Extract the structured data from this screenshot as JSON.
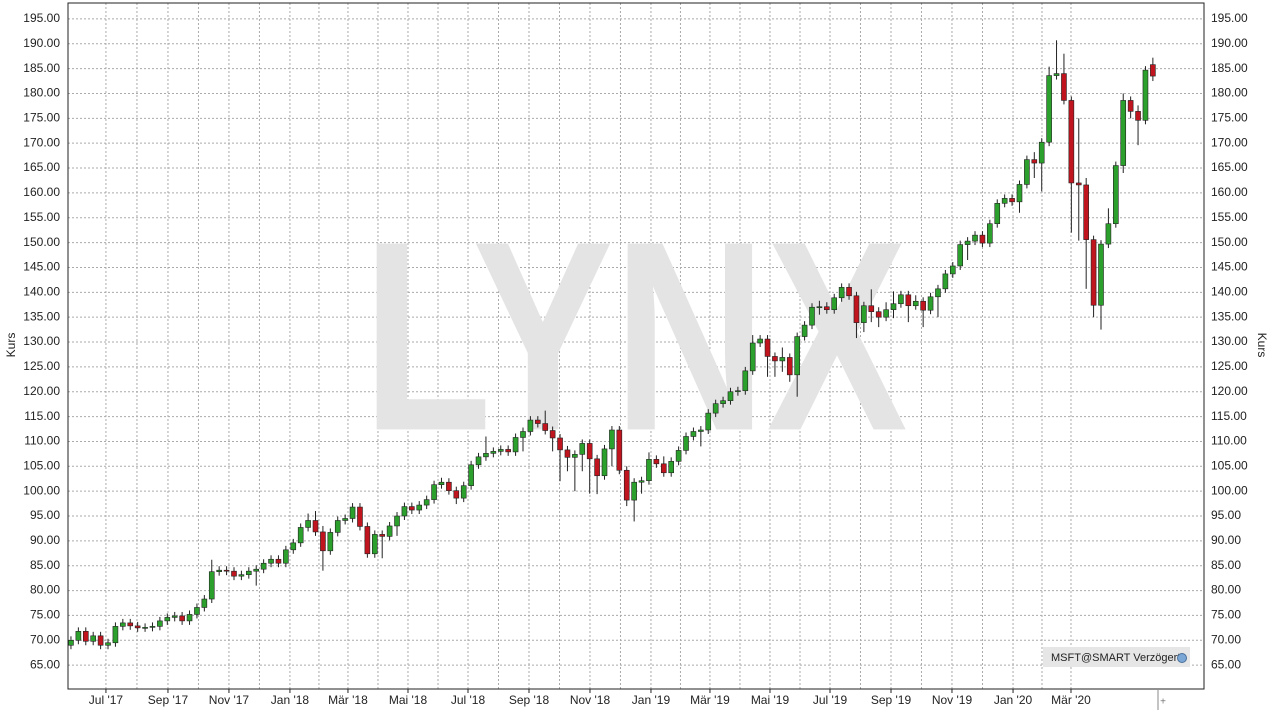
{
  "chart_data": {
    "type": "candlestick",
    "ylabel": "Kurs",
    "watermark": "LYNX",
    "badge": "MSFT@SMART Verzögert",
    "up_color": "#2ca02c",
    "down_color": "#c0141e",
    "grid": true,
    "categories": [
      null,
      null,
      null,
      null,
      null,
      null,
      null,
      null,
      null,
      null,
      null,
      null,
      null,
      null,
      null,
      null,
      null,
      null,
      null,
      null,
      null,
      null,
      null,
      null,
      null,
      null,
      null,
      null,
      null,
      null,
      null,
      null,
      null,
      null,
      null,
      null,
      null,
      null,
      null,
      null,
      null,
      null,
      null,
      null,
      null,
      null,
      null,
      null,
      null,
      null,
      null,
      null,
      null,
      null,
      null,
      null,
      null,
      null,
      null,
      null,
      null,
      null,
      null,
      null,
      null,
      null,
      null,
      null,
      null,
      null,
      null,
      null,
      null,
      null,
      null,
      null,
      null,
      null,
      null,
      null,
      null,
      null,
      null,
      null,
      null,
      null,
      null,
      null,
      null,
      null,
      null,
      null,
      null,
      null,
      null,
      null,
      null,
      null,
      null,
      null,
      null,
      null,
      null,
      null,
      null,
      null,
      null,
      null,
      null,
      null,
      null,
      null,
      null,
      null,
      null,
      null,
      null,
      null,
      null,
      null,
      null,
      null,
      null,
      null,
      null,
      null,
      null,
      null,
      null,
      null,
      null,
      null,
      null,
      null,
      null,
      null,
      null,
      null,
      null,
      null,
      null,
      null,
      null,
      null,
      null,
      null,
      null
    ],
    "open": [
      69.0,
      70.0,
      71.8,
      69.8,
      70.9,
      69.0,
      69.5,
      72.8,
      73.5,
      72.9,
      72.5,
      72.6,
      72.8,
      73.9,
      74.6,
      74.9,
      73.9,
      75.2,
      76.6,
      78.3,
      83.8,
      84.1,
      83.9,
      82.9,
      83.2,
      83.9,
      84.3,
      85.5,
      86.3,
      85.5,
      88.2,
      89.6,
      92.7,
      94.1,
      91.8,
      88.0,
      91.7,
      94.1,
      94.5,
      96.8,
      92.9,
      87.4,
      91.3,
      90.9,
      93.0,
      95.0,
      96.9,
      96.2,
      97.2,
      98.3,
      101.3,
      101.8,
      100.1,
      98.6,
      101.1,
      105.3,
      106.9,
      107.6,
      108.0,
      108.4,
      107.9,
      110.8,
      112.0,
      114.3,
      113.6,
      112.2,
      110.7,
      108.3,
      106.8,
      107.4,
      109.6,
      106.5,
      103.1,
      108.5,
      112.3,
      104.2,
      98.2,
      101.8,
      102.1,
      106.4,
      105.5,
      103.7,
      106.0,
      108.2,
      111.0,
      112.0,
      112.3,
      115.7,
      117.6,
      118.2,
      120.0,
      120.2,
      124.2,
      129.8,
      130.6,
      127.1,
      126.2,
      126.9,
      123.4,
      131.1,
      133.4,
      137.0,
      137.1,
      136.5,
      138.9,
      141.0,
      139.3,
      133.9,
      137.3,
      136.1,
      135.0,
      136.5,
      137.7,
      139.5,
      137.3,
      138.2,
      136.4,
      139.1,
      140.7,
      143.7,
      145.3,
      149.6,
      150.3,
      151.5,
      149.9,
      153.8,
      157.9,
      158.9,
      158.2,
      161.7,
      166.7,
      166.0,
      170.2,
      183.6,
      184.0,
      178.6,
      162.0,
      161.6,
      150.6,
      137.4,
      149.7,
      153.8,
      165.5,
      178.6,
      176.4,
      174.6,
      185.8
    ],
    "high": [
      70.8,
      72.6,
      72.6,
      71.7,
      71.7,
      70.3,
      73.6,
      74.3,
      74.3,
      73.7,
      73.4,
      73.6,
      74.7,
      75.4,
      75.7,
      75.7,
      76.0,
      77.4,
      79.1,
      86.2,
      84.9,
      84.9,
      84.7,
      84.0,
      84.7,
      85.1,
      86.3,
      87.1,
      87.1,
      89.0,
      90.4,
      93.5,
      95.5,
      96.0,
      93.0,
      92.5,
      94.9,
      95.3,
      97.6,
      97.6,
      93.7,
      92.1,
      92.1,
      93.8,
      95.8,
      97.7,
      97.7,
      98.0,
      99.1,
      102.1,
      102.7,
      102.6,
      100.9,
      101.9,
      106.1,
      107.7,
      111.0,
      108.8,
      109.2,
      109.2,
      111.6,
      112.8,
      115.1,
      115.1,
      116.2,
      113.0,
      111.5,
      109.1,
      108.2,
      110.4,
      110.4,
      107.3,
      109.3,
      113.1,
      113.1,
      105.0,
      102.6,
      102.9,
      107.8,
      107.2,
      107.0,
      106.8,
      109.0,
      111.8,
      112.8,
      113.1,
      116.5,
      118.4,
      119.0,
      120.8,
      121.0,
      125.0,
      131.4,
      131.4,
      131.4,
      127.9,
      128.9,
      127.7,
      131.9,
      134.2,
      137.8,
      138.3,
      138.0,
      139.7,
      141.8,
      141.8,
      140.1,
      138.1,
      140.6,
      137.0,
      138.0,
      140.2,
      140.3,
      140.3,
      139.4,
      139.0,
      139.9,
      141.5,
      144.5,
      146.1,
      150.4,
      151.1,
      152.3,
      152.3,
      154.6,
      158.7,
      159.7,
      159.7,
      162.5,
      167.5,
      168.2,
      171.0,
      185.4,
      190.7,
      188.0,
      179.4,
      175.0,
      163.0,
      151.4,
      150.5,
      156.9,
      166.3,
      180.0,
      179.4,
      177.6,
      185.5,
      187.2
    ],
    "low": [
      68.2,
      69.2,
      69.0,
      69.0,
      68.2,
      68.2,
      68.7,
      72.0,
      72.1,
      71.7,
      71.7,
      71.8,
      72.0,
      73.1,
      73.8,
      73.1,
      73.1,
      74.4,
      75.8,
      77.5,
      83.0,
      83.1,
      82.1,
      82.1,
      82.4,
      81.0,
      83.5,
      84.7,
      84.7,
      84.7,
      87.4,
      88.8,
      91.9,
      91.0,
      84.0,
      87.2,
      90.9,
      93.3,
      93.7,
      92.1,
      86.6,
      86.6,
      86.5,
      90.1,
      91.0,
      94.2,
      95.4,
      95.4,
      96.4,
      97.5,
      100.5,
      99.3,
      97.4,
      97.8,
      100.3,
      104.5,
      106.1,
      106.8,
      107.2,
      107.1,
      107.1,
      108.0,
      111.2,
      112.8,
      111.4,
      108.0,
      102.0,
      104.0,
      100.0,
      104.0,
      99.5,
      99.4,
      102.3,
      105.0,
      103.4,
      97.0,
      93.9,
      99.5,
      101.3,
      104.7,
      102.9,
      102.9,
      105.2,
      107.4,
      110.2,
      109.0,
      111.5,
      114.9,
      116.8,
      117.4,
      119.2,
      119.4,
      123.4,
      129.0,
      123.0,
      123.0,
      124.0,
      122.0,
      119.0,
      130.3,
      132.6,
      135.5,
      135.7,
      135.7,
      138.1,
      138.5,
      130.8,
      132.0,
      134.0,
      133.0,
      134.2,
      134.8,
      136.9,
      134.0,
      136.5,
      133.0,
      135.6,
      135.0,
      139.9,
      142.9,
      144.5,
      146.5,
      149.5,
      149.1,
      149.1,
      153.0,
      157.1,
      157.4,
      156.0,
      160.9,
      163.0,
      160.3,
      169.4,
      182.8,
      177.8,
      152.0,
      150.4,
      140.7,
      135.0,
      132.5,
      148.9,
      153.0,
      164.0,
      175.0,
      169.6,
      173.8,
      182.5
    ],
    "close": [
      70.0,
      71.8,
      69.8,
      70.9,
      69.0,
      69.5,
      72.8,
      73.5,
      72.9,
      72.5,
      72.6,
      72.8,
      73.9,
      74.6,
      74.9,
      73.9,
      75.2,
      76.6,
      78.3,
      83.8,
      84.1,
      83.9,
      82.9,
      83.2,
      83.9,
      84.3,
      85.5,
      86.3,
      85.5,
      88.2,
      89.6,
      92.7,
      94.1,
      91.8,
      88.0,
      91.7,
      94.1,
      94.5,
      96.8,
      92.9,
      87.4,
      91.3,
      90.9,
      93.0,
      95.0,
      96.9,
      96.2,
      97.2,
      98.3,
      101.3,
      101.8,
      100.1,
      98.6,
      101.1,
      105.3,
      106.9,
      107.6,
      108.0,
      108.4,
      107.9,
      110.8,
      112.0,
      114.3,
      113.6,
      112.2,
      110.7,
      108.3,
      106.8,
      107.4,
      109.6,
      106.5,
      103.1,
      108.5,
      112.3,
      104.2,
      98.2,
      101.8,
      102.1,
      106.4,
      105.5,
      103.7,
      106.0,
      108.2,
      111.0,
      112.0,
      112.3,
      115.7,
      117.6,
      118.2,
      120.0,
      120.2,
      124.2,
      129.8,
      130.6,
      127.1,
      126.2,
      126.9,
      123.4,
      131.1,
      133.4,
      137.0,
      137.1,
      136.5,
      138.9,
      141.0,
      139.3,
      133.9,
      137.3,
      136.1,
      135.0,
      136.5,
      137.7,
      139.5,
      137.3,
      138.2,
      136.4,
      139.1,
      140.7,
      143.7,
      145.3,
      149.6,
      150.3,
      151.5,
      149.9,
      153.8,
      157.9,
      158.9,
      158.2,
      161.7,
      166.7,
      166.0,
      170.2,
      183.6,
      184.0,
      178.6,
      162.0,
      161.6,
      150.6,
      137.4,
      149.7,
      153.8,
      165.5,
      178.6,
      176.4,
      174.6,
      184.7,
      183.5
    ],
    "xlim": [
      -0.4,
      152.9
    ],
    "xticks": [
      {
        "value": 4.72,
        "label": "Jul '17"
      },
      {
        "value": 13.09,
        "label": "Sep '17"
      },
      {
        "value": 21.32,
        "label": "Nov '17"
      },
      {
        "value": 29.55,
        "label": "Jan '18"
      },
      {
        "value": 37.38,
        "label": "Mär '18"
      },
      {
        "value": 45.48,
        "label": "Mai '18"
      },
      {
        "value": 53.58,
        "label": "Jul '18"
      },
      {
        "value": 61.81,
        "label": "Sep '18"
      },
      {
        "value": 70.04,
        "label": "Nov '18"
      },
      {
        "value": 78.27,
        "label": "Jan '19"
      },
      {
        "value": 86.23,
        "label": "Mär '19"
      },
      {
        "value": 94.33,
        "label": "Mai '19"
      },
      {
        "value": 102.43,
        "label": "Jul '19"
      },
      {
        "value": 110.66,
        "label": "Sep '19"
      },
      {
        "value": 118.89,
        "label": "Nov '19"
      },
      {
        "value": 127.13,
        "label": "Jan '20"
      },
      {
        "value": 134.95,
        "label": "Mär '20"
      }
    ],
    "ylim": [
      60.2,
      198.2
    ],
    "yticks": [
      {
        "value": 65,
        "label": "65.00"
      },
      {
        "value": 70,
        "label": "70.00"
      },
      {
        "value": 75,
        "label": "75.00"
      },
      {
        "value": 80,
        "label": "80.00"
      },
      {
        "value": 85,
        "label": "85.00"
      },
      {
        "value": 90,
        "label": "90.00"
      },
      {
        "value": 95,
        "label": "95.00"
      },
      {
        "value": 100,
        "label": "100.00"
      },
      {
        "value": 105,
        "label": "105.00"
      },
      {
        "value": 110,
        "label": "110.00"
      },
      {
        "value": 115,
        "label": "115.00"
      },
      {
        "value": 120,
        "label": "120.00"
      },
      {
        "value": 125,
        "label": "125.00"
      },
      {
        "value": 130,
        "label": "130.00"
      },
      {
        "value": 135,
        "label": "135.00"
      },
      {
        "value": 140,
        "label": "140.00"
      },
      {
        "value": 145,
        "label": "145.00"
      },
      {
        "value": 150,
        "label": "150.00"
      },
      {
        "value": 155,
        "label": "155.00"
      },
      {
        "value": 160,
        "label": "160.00"
      },
      {
        "value": 165,
        "label": "165.00"
      },
      {
        "value": 170,
        "label": "170.00"
      },
      {
        "value": 175,
        "label": "175.00"
      },
      {
        "value": 180,
        "label": "180.00"
      },
      {
        "value": 185,
        "label": "185.00"
      },
      {
        "value": 190,
        "label": "190.00"
      },
      {
        "value": 195,
        "label": "195.00"
      }
    ]
  }
}
